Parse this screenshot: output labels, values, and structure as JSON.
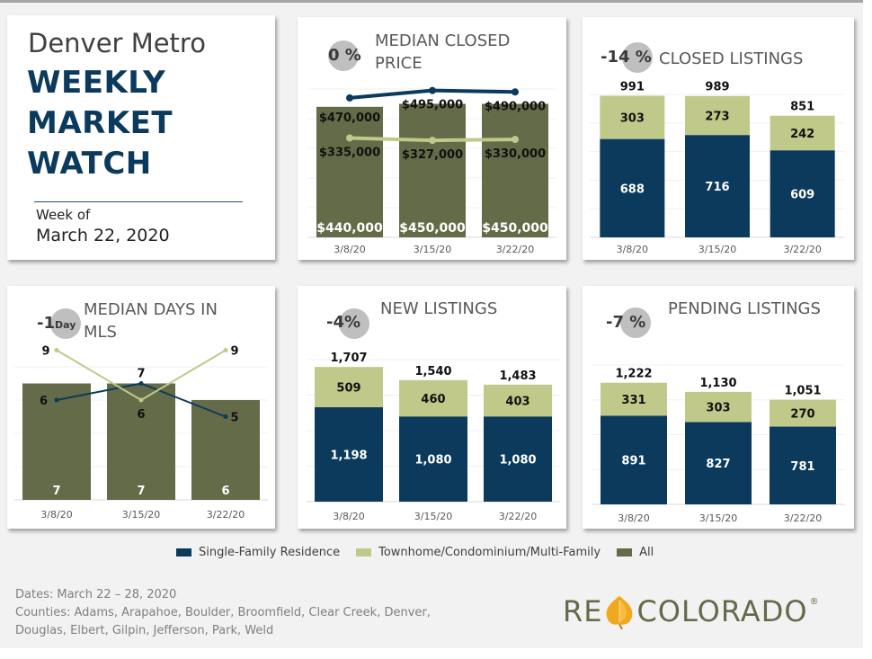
{
  "header": {
    "region": "Denver Metro",
    "title_lines": [
      "WEEKLY",
      "MARKET",
      "WATCH"
    ],
    "week_label": "Week of",
    "week_date": "March 22, 2020"
  },
  "colors": {
    "single_family": "#0b3a5c",
    "townhome": "#c0c98a",
    "all": "#636b48",
    "badge": "#bfbfbf"
  },
  "legend": [
    {
      "label": "Single-Family Residence",
      "color": "#0b3a5c"
    },
    {
      "label": "Townhome/Condominium/Multi-Family",
      "color": "#c0c98a"
    },
    {
      "label": "All",
      "color": "#636b48"
    }
  ],
  "footer": {
    "dates": "Dates: March 22 – 28, 2020",
    "counties": "Counties: Adams, Arapahoe, Boulder, Broomfield, Clear Creek, Denver, Douglas, Elbert, Gilpin, Jefferson, Park, Weld"
  },
  "logo": {
    "left": "RE",
    "right": "COLORADO",
    "mark": "®"
  },
  "cards": {
    "price": {
      "title": "MEDIAN CLOSED PRICE",
      "change": "0 %",
      "change_unit": ""
    },
    "closed": {
      "title": "CLOSED LISTINGS",
      "change": "-14 %",
      "change_unit": ""
    },
    "dom": {
      "title": "MEDIAN DAYS IN MLS",
      "change": "-1",
      "change_unit": "Day"
    },
    "new": {
      "title": "NEW LISTINGS",
      "change": "-4%",
      "change_unit": ""
    },
    "pending": {
      "title": "PENDING LISTINGS",
      "change": "-7 %",
      "change_unit": ""
    }
  },
  "chart_data": [
    {
      "id": "price",
      "type": "bar+line",
      "title": "MEDIAN CLOSED PRICE",
      "categories": [
        "3/8/20",
        "3/15/20",
        "3/22/20"
      ],
      "bars": {
        "name": "All",
        "values": [
          440000,
          450000,
          450000
        ],
        "labels": [
          "$440,000",
          "$450,000",
          "$450,000"
        ]
      },
      "lines": [
        {
          "name": "Single-Family Residence",
          "values": [
            470000,
            495000,
            490000
          ],
          "labels": [
            "$470,000",
            "$495,000",
            "$490,000"
          ]
        },
        {
          "name": "Townhome/Condominium/Multi-Family",
          "values": [
            335000,
            327000,
            330000
          ],
          "labels": [
            "$335,000",
            "$327,000",
            "$330,000"
          ]
        }
      ],
      "ylim": [
        0,
        500000
      ],
      "grid": true
    },
    {
      "id": "closed",
      "type": "stacked-bar",
      "title": "CLOSED LISTINGS",
      "categories": [
        "3/8/20",
        "3/15/20",
        "3/22/20"
      ],
      "series": [
        {
          "name": "Single-Family Residence",
          "values": [
            688,
            716,
            609
          ],
          "labels": [
            "688",
            "716",
            "609"
          ]
        },
        {
          "name": "Townhome/Condominium/Multi-Family",
          "values": [
            303,
            273,
            242
          ],
          "labels": [
            "303",
            "273",
            "242"
          ]
        }
      ],
      "totals": [
        991,
        989,
        851
      ],
      "total_labels": [
        "991",
        "989",
        "851"
      ],
      "ylim": [
        0,
        1000
      ],
      "grid": true
    },
    {
      "id": "dom",
      "type": "bar+line",
      "title": "MEDIAN DAYS IN MLS",
      "categories": [
        "3/8/20",
        "3/15/20",
        "3/22/20"
      ],
      "bars": {
        "name": "All",
        "values": [
          7,
          7,
          6
        ],
        "labels": [
          "7",
          "7",
          "6"
        ]
      },
      "lines": [
        {
          "name": "Single-Family Residence",
          "values": [
            6,
            7,
            5
          ],
          "labels": [
            "6",
            "7",
            "5"
          ]
        },
        {
          "name": "Townhome/Condominium/Multi-Family",
          "values": [
            9,
            6,
            9
          ],
          "labels": [
            "9",
            "6",
            "9"
          ]
        }
      ],
      "ylim": [
        0,
        8
      ],
      "grid": true
    },
    {
      "id": "new",
      "type": "stacked-bar",
      "title": "NEW LISTINGS",
      "categories": [
        "3/8/20",
        "3/15/20",
        "3/22/20"
      ],
      "series": [
        {
          "name": "Single-Family Residence",
          "values": [
            1198,
            1080,
            1080
          ],
          "labels": [
            "1,198",
            "1,080",
            "1,080"
          ]
        },
        {
          "name": "Townhome/Condominium/Multi-Family",
          "values": [
            509,
            460,
            403
          ],
          "labels": [
            "509",
            "460",
            "403"
          ]
        }
      ],
      "totals": [
        1707,
        1540,
        1483
      ],
      "total_labels": [
        "1,707",
        "1,540",
        "1,483"
      ],
      "ylim": [
        0,
        1800
      ],
      "grid": true
    },
    {
      "id": "pending",
      "type": "stacked-bar",
      "title": "PENDING LISTINGS",
      "categories": [
        "3/8/20",
        "3/15/20",
        "3/22/20"
      ],
      "series": [
        {
          "name": "Single-Family Residence",
          "values": [
            891,
            827,
            781
          ],
          "labels": [
            "891",
            "827",
            "781"
          ]
        },
        {
          "name": "Townhome/Condominium/Multi-Family",
          "values": [
            331,
            303,
            270
          ],
          "labels": [
            "331",
            "303",
            "270"
          ]
        }
      ],
      "totals": [
        1222,
        1130,
        1051
      ],
      "total_labels": [
        "1,222",
        "1,130",
        "1,051"
      ],
      "ylim": [
        0,
        1400
      ],
      "grid": true
    }
  ]
}
